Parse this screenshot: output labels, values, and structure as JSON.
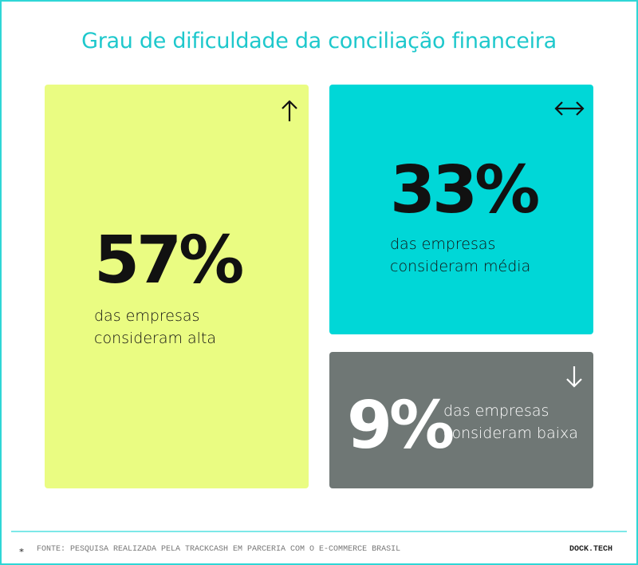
{
  "title": "Grau de dificuldade da conciliação financeira",
  "cards": [
    {
      "value": "57%",
      "line1": "das empresas",
      "line2": "consideram alta",
      "icon": "arrow-up-icon",
      "color": "#eafc82"
    },
    {
      "value": "33%",
      "line1": "das empresas",
      "line2": "consideram média",
      "icon": "arrow-left-right-icon",
      "color": "#00d7d7"
    },
    {
      "value": "9%",
      "line1": "das empresas",
      "line2": "consideram baixa",
      "icon": "arrow-down-icon",
      "color": "#6f7775"
    }
  ],
  "footer": {
    "source": "FONTE: PESQUISA REALIZADA PELA TRACKCASH EM PARCERIA COM O E-COMMERCE BRASIL",
    "brand": "DOCK.TECH",
    "icon": "asterisk-icon"
  }
}
